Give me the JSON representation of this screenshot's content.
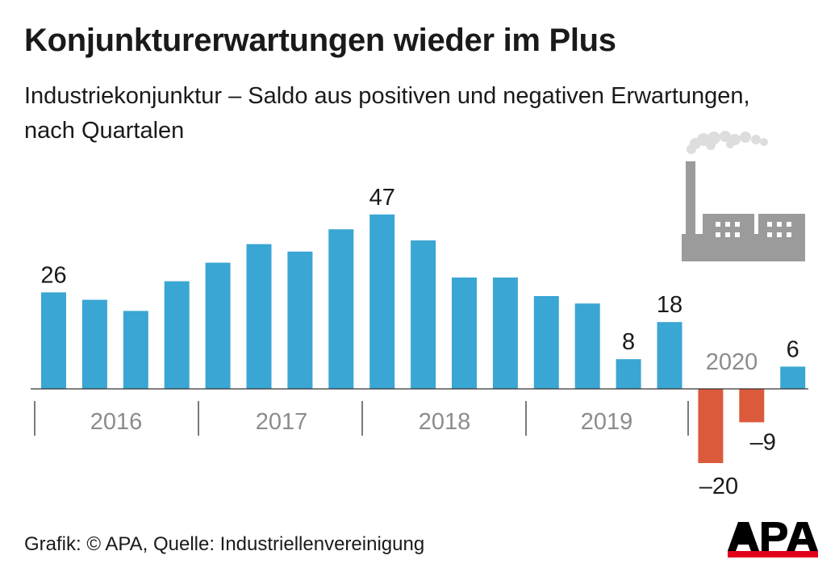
{
  "title": "Konjunkturerwartungen wieder im Plus",
  "subtitle": "Industriekonjunktur – Saldo aus positiven und negativen Erwartungen, nach Quartalen",
  "footer": "Grafik: © APA, Quelle: Industriellenvereinigung",
  "logo_text": "APA",
  "icon": "factory-icon",
  "colors": {
    "positive": "#3aa6d3",
    "negative": "#dc5a3c",
    "year_label": "#8c8c8c",
    "icon": "#9b9b9b",
    "logo_red": "#e2001a"
  },
  "chart_data": {
    "type": "bar",
    "categories": [
      "2016 Q1",
      "2016 Q2",
      "2016 Q3",
      "2016 Q4",
      "2017 Q1",
      "2017 Q2",
      "2017 Q3",
      "2017 Q4",
      "2018 Q1",
      "2018 Q2",
      "2018 Q3",
      "2018 Q4",
      "2019 Q1",
      "2019 Q2",
      "2019 Q3",
      "2019 Q4",
      "2020 Q1",
      "2020 Q2",
      "2020 Q3"
    ],
    "values": [
      26,
      24,
      21,
      29,
      34,
      39,
      37,
      43,
      47,
      40,
      30,
      30,
      25,
      23,
      8,
      18,
      -20,
      -9,
      6
    ],
    "data_labels": [
      "26",
      "",
      "",
      "",
      "",
      "",
      "",
      "",
      "47",
      "",
      "",
      "",
      "",
      "",
      "8",
      "18",
      "–20",
      "–9",
      "6"
    ],
    "year_labels": [
      "2016",
      "2017",
      "2018",
      "2019",
      "2020"
    ],
    "ylim": [
      -20,
      47
    ],
    "title": "",
    "xlabel": "",
    "ylabel": "",
    "grid": false,
    "legend": false
  }
}
